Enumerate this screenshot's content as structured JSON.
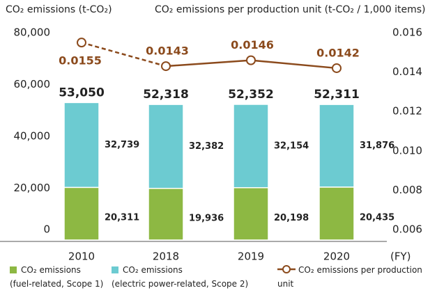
{
  "chart_data": {
    "type": "bar_line",
    "y_title": "CO₂ emissions (t-CO₂)",
    "y2_title": "CO₂ emissions per production unit (t-CO₂ / 1,000 items)",
    "x_unit": "(FY)",
    "categories": [
      "2010",
      "2018",
      "2019",
      "2020"
    ],
    "series": [
      {
        "name": "CO₂ emissions",
        "name_note": "(fuel-related, Scope 1)",
        "color": "#8db843",
        "values": [
          20311,
          19936,
          20198,
          20435
        ],
        "value_labels": [
          "20,311",
          "19,936",
          "20,198",
          "20,435"
        ]
      },
      {
        "name": "CO₂ emissions",
        "name_note": "(electric power-related, Scope 2)",
        "color": "#6ccbd1",
        "values": [
          32739,
          32382,
          32154,
          31876
        ],
        "value_labels": [
          "32,739",
          "32,382",
          "32,154",
          "31,876"
        ]
      },
      {
        "name": "CO₂ emissions per production unit",
        "color": "#8b4a1c",
        "axis": "y2",
        "type": "line",
        "values": [
          0.0155,
          0.0143,
          0.0146,
          0.0142
        ]
      }
    ],
    "totals": [
      53050,
      52318,
      52352,
      52311
    ],
    "total_labels": [
      "53,050",
      "52,318",
      "52,352",
      "52,311"
    ],
    "ylim": [
      0,
      80000
    ],
    "yticks": [
      0,
      {
        "value": 20000,
        "label": "20,000"
      },
      {
        "value": 40000,
        "label": "40,000"
      },
      {
        "value": 60000,
        "label": "60,000"
      },
      {
        "value": 80000,
        "label": "80,000"
      }
    ],
    "y2lim": [
      0.006,
      0.016
    ],
    "y2ticks": [
      0.006,
      0.008,
      {
        "value": 0.01,
        "label": "0.010"
      },
      0.012,
      0.014,
      0.016
    ]
  }
}
